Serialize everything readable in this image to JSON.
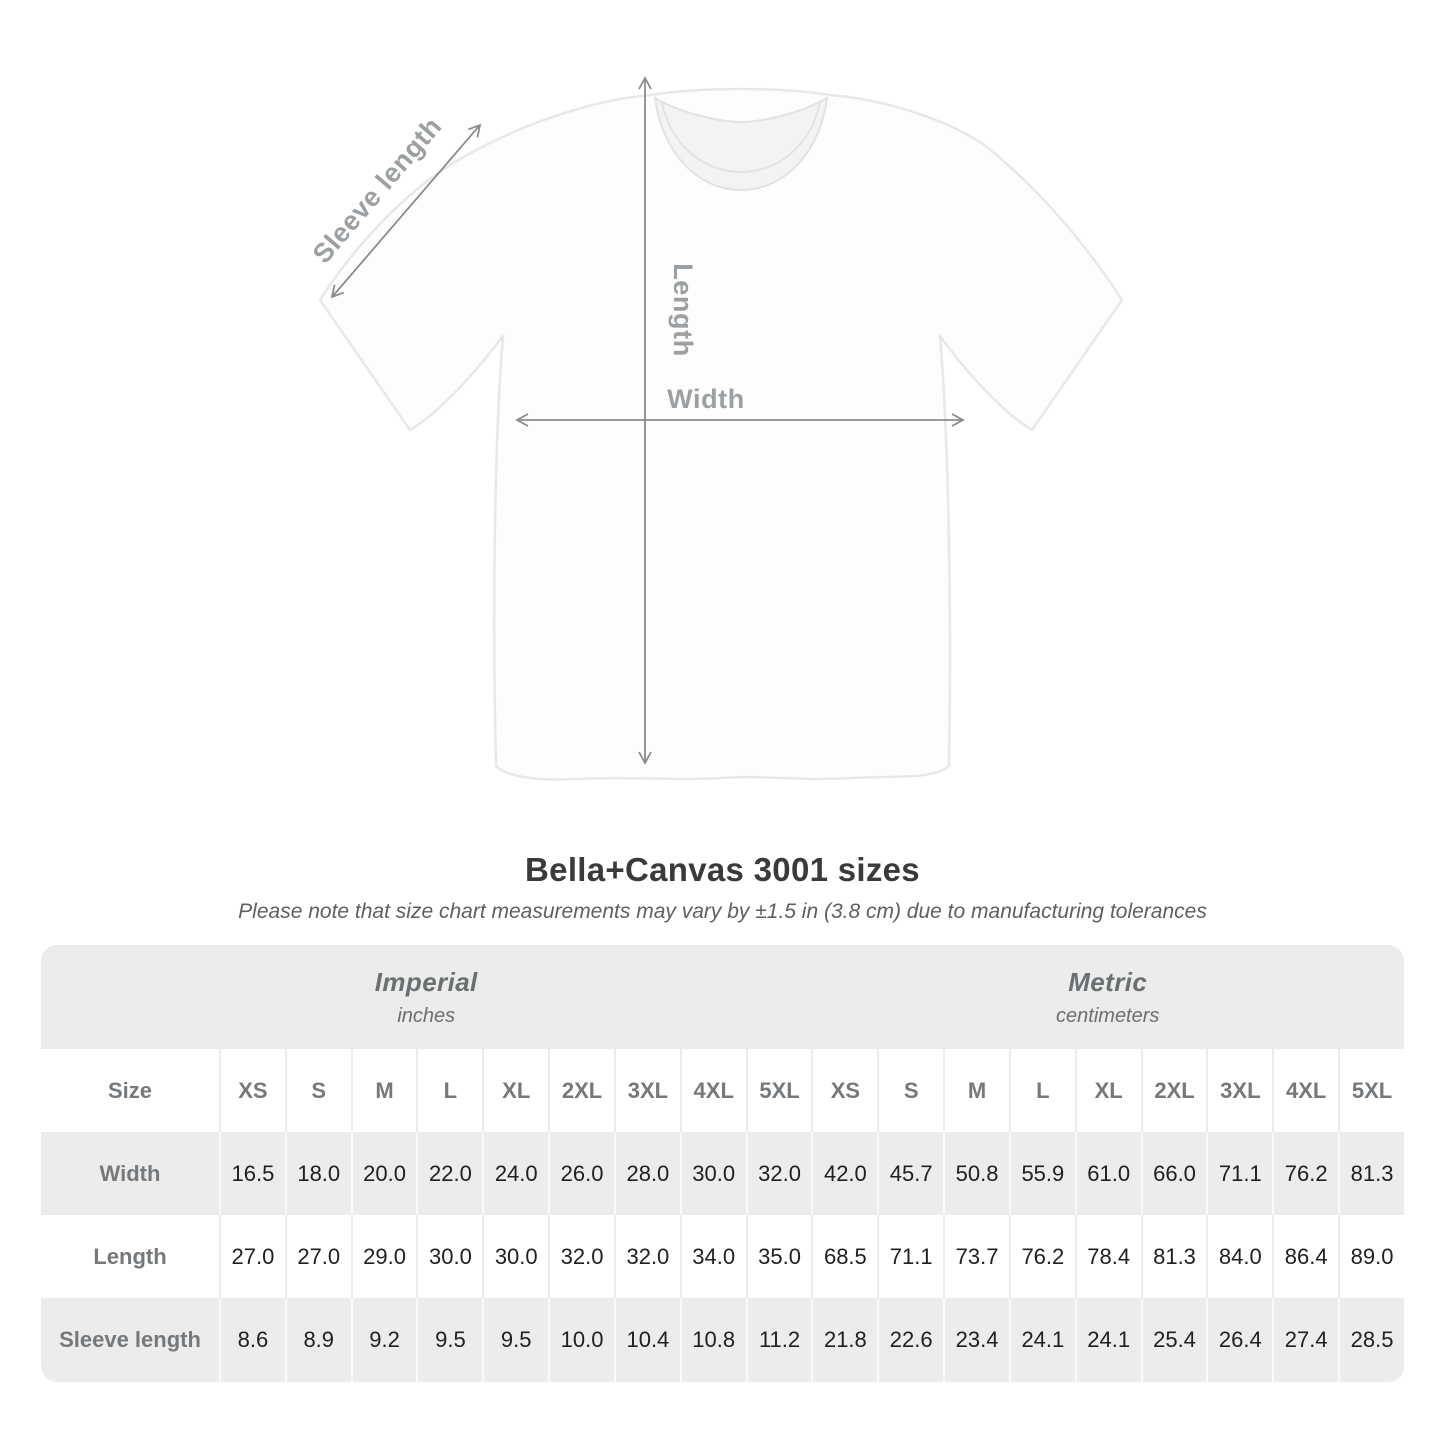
{
  "diagram": {
    "sleeve_label": "Sleeve length",
    "length_label": "Length",
    "width_label": "Width"
  },
  "title": "Bella+Canvas 3001 sizes",
  "note": "Please note that size chart measurements may vary by ±1.5 in (3.8 cm) due to manufacturing tolerances",
  "table": {
    "size_label": "Size",
    "sizes": [
      "XS",
      "S",
      "M",
      "L",
      "XL",
      "2XL",
      "3XL",
      "4XL",
      "5XL"
    ],
    "groups": [
      {
        "label": "Imperial",
        "sublabel": "inches"
      },
      {
        "label": "Metric",
        "sublabel": "centimeters"
      }
    ],
    "rows": [
      {
        "label": "Width",
        "imperial": [
          "16.5",
          "18.0",
          "20.0",
          "22.0",
          "24.0",
          "26.0",
          "28.0",
          "30.0",
          "32.0"
        ],
        "metric": [
          "42.0",
          "45.7",
          "50.8",
          "55.9",
          "61.0",
          "66.0",
          "71.1",
          "76.2",
          "81.3"
        ]
      },
      {
        "label": "Length",
        "imperial": [
          "27.0",
          "27.0",
          "29.0",
          "30.0",
          "30.0",
          "32.0",
          "32.0",
          "34.0",
          "35.0"
        ],
        "metric": [
          "68.5",
          "71.1",
          "73.7",
          "76.2",
          "78.4",
          "81.3",
          "84.0",
          "86.4",
          "89.0"
        ]
      },
      {
        "label": "Sleeve length",
        "imperial": [
          "8.6",
          "8.9",
          "9.2",
          "9.5",
          "9.5",
          "10.0",
          "10.4",
          "10.8",
          "11.2"
        ],
        "metric": [
          "21.8",
          "22.6",
          "23.4",
          "24.1",
          "24.1",
          "25.4",
          "26.4",
          "27.4",
          "28.5"
        ]
      }
    ]
  },
  "chart_data": {
    "type": "table",
    "title": "Bella+Canvas 3001 sizes",
    "columns": [
      "XS",
      "S",
      "M",
      "L",
      "XL",
      "2XL",
      "3XL",
      "4XL",
      "5XL"
    ],
    "units": {
      "imperial": "inches",
      "metric": "centimeters"
    },
    "rows": [
      {
        "measurement": "Width",
        "imperial_in": [
          16.5,
          18.0,
          20.0,
          22.0,
          24.0,
          26.0,
          28.0,
          30.0,
          32.0
        ],
        "metric_cm": [
          42.0,
          45.7,
          50.8,
          55.9,
          61.0,
          66.0,
          71.1,
          76.2,
          81.3
        ]
      },
      {
        "measurement": "Length",
        "imperial_in": [
          27.0,
          27.0,
          29.0,
          30.0,
          30.0,
          32.0,
          32.0,
          34.0,
          35.0
        ],
        "metric_cm": [
          68.5,
          71.1,
          73.7,
          76.2,
          78.4,
          81.3,
          84.0,
          86.4,
          89.0
        ]
      },
      {
        "measurement": "Sleeve length",
        "imperial_in": [
          8.6,
          8.9,
          9.2,
          9.5,
          9.5,
          10.0,
          10.4,
          10.8,
          11.2
        ],
        "metric_cm": [
          21.8,
          22.6,
          23.4,
          24.1,
          24.1,
          25.4,
          26.4,
          27.4,
          28.5
        ]
      }
    ]
  }
}
